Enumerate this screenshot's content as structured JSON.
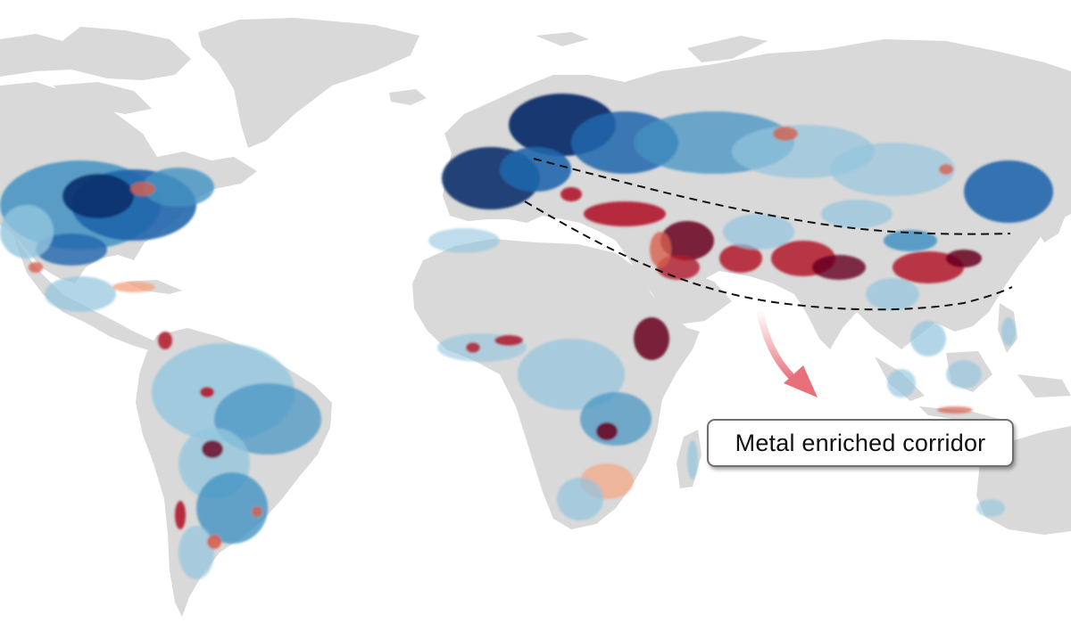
{
  "map": {
    "style": "world choropleth, diverging red-blue",
    "land_no_data_color": "#d9d9d9",
    "background_color": "#ffffff",
    "color_scale": [
      "#08306b",
      "#2166ac",
      "#4393c3",
      "#92c5de",
      "#d1e5f0",
      "#f7f7f7",
      "#fddbc7",
      "#f4a582",
      "#d6604d",
      "#b2182b",
      "#67001f"
    ],
    "corridor_line_color": "#111111",
    "arrow_color": "#e8707a"
  },
  "annotation": {
    "label": "Metal enriched corridor",
    "icon": "arrow-icon"
  }
}
